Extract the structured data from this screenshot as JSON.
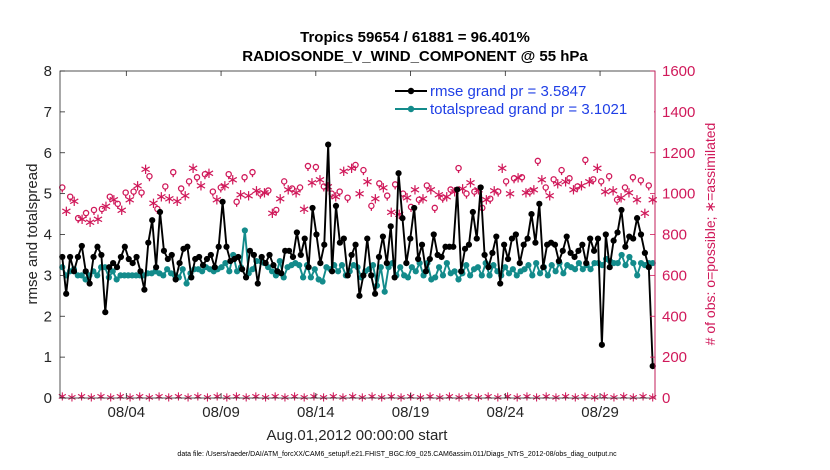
{
  "chart_data": {
    "type": "line",
    "title": "Tropics 59654 / 61881 = 96.401%",
    "subtitle": "RADIOSONDE_V_WIND_COMPONENT @ 55 hPa",
    "xlabel": "Aug.01,2012 00:00:00 start",
    "ylabel": "rmse and totalspread",
    "ylabel_right": "# of obs: o=possible; ∗=assimilated",
    "footnote": "data file: /Users/raeder/DAI/ATM_forcXX/CAM6_setup/f.e21.FHIST_BGC.f09_025.CAM6assim.011/Diags_NTrS_2012-08/obs_diag_output.nc",
    "xlim": [
      0.5,
      31.9
    ],
    "ylim": [
      0,
      8
    ],
    "ylim_right": [
      0,
      1600
    ],
    "x_ticks": [
      {
        "x": 4,
        "label": "08/04"
      },
      {
        "x": 9,
        "label": "08/09"
      },
      {
        "x": 14,
        "label": "08/14"
      },
      {
        "x": 19,
        "label": "08/19"
      },
      {
        "x": 24,
        "label": "08/24"
      },
      {
        "x": 29,
        "label": "08/29"
      }
    ],
    "y_ticks": [
      "0",
      "1",
      "2",
      "3",
      "4",
      "5",
      "6",
      "7",
      "8"
    ],
    "y_ticks_right": [
      "0",
      "200",
      "400",
      "600",
      "800",
      "1000",
      "1200",
      "1400",
      "1600"
    ],
    "legend": {
      "position": "top-right",
      "entries": [
        {
          "label": "rmse grand pr = 3.5847",
          "color": "#000000"
        },
        {
          "label": "totalspread grand pr = 3.1021",
          "color": "#138b8b"
        }
      ]
    },
    "colors": {
      "rmse": "#000000",
      "spread": "#138b8b",
      "obs": "#d0195a",
      "axis": "#262626"
    },
    "series": [
      {
        "name": "rmse",
        "values": [
          3.45,
          2.55,
          3.45,
          3.1,
          3.45,
          3.72,
          3.1,
          2.8,
          3.45,
          3.7,
          3.5,
          2.1,
          3.2,
          3.3,
          3.2,
          3.45,
          3.7,
          3.4,
          3.3,
          3.45,
          3.1,
          2.65,
          3.8,
          4.35,
          3.2,
          4.55,
          3.6,
          3.4,
          3.5,
          2.9,
          3.3,
          3.65,
          3.7,
          2.95,
          3.4,
          3.45,
          3.25,
          3.4,
          3.5,
          3.2,
          3.7,
          4.8,
          3.7,
          3.35,
          3.4,
          3.45,
          3.15,
          2.95,
          3.6,
          3.5,
          2.8,
          3.45,
          3.3,
          3.5,
          3.25,
          3.1,
          3.05,
          3.6,
          3.6,
          3.45,
          4.05,
          3.5,
          3.9,
          3.2,
          4.65,
          4.0,
          3.3,
          3.75,
          6.2,
          3.1,
          4.7,
          3.8,
          3.9,
          3.0,
          3.5,
          3.75,
          2.5,
          3.0,
          3.9,
          3.0,
          2.55,
          3.45,
          3.95,
          3.3,
          4.2,
          2.95,
          5.5,
          4.4,
          3.3,
          3.9,
          4.65,
          3.4,
          3.75,
          3.1,
          3.4,
          4.0,
          3.5,
          3.45,
          3.7,
          3.7,
          3.7,
          5.1,
          3.1,
          3.65,
          3.75,
          4.55,
          3.9,
          5.15,
          3.5,
          3.2,
          3.55,
          3.95,
          2.8,
          3.75,
          3.4,
          3.9,
          4.0,
          3.3,
          3.75,
          3.9,
          4.5,
          3.8,
          4.75,
          3.2,
          3.75,
          3.8,
          3.75,
          3.35,
          3.6,
          3.95,
          3.55,
          3.45,
          3.6,
          3.75,
          3.3,
          3.9,
          3.6,
          3.9,
          1.3,
          4.0,
          3.2,
          3.85,
          4.05,
          4.6,
          3.7,
          3.95,
          3.9,
          4.4,
          4.0,
          3.55,
          3.2,
          0.78
        ]
      },
      {
        "name": "totalspread",
        "values": [
          3.2,
          3.0,
          3.1,
          3.15,
          3.0,
          3.0,
          2.9,
          3.0,
          3.1,
          3.0,
          3.2,
          3.2,
          2.95,
          3.1,
          2.9,
          3.0,
          3.0,
          3.0,
          3.0,
          3.0,
          3.0,
          3.0,
          3.05,
          3.05,
          3.1,
          3.05,
          3.0,
          3.15,
          3.05,
          3.0,
          2.95,
          3.15,
          2.8,
          3.05,
          3.15,
          3.15,
          3.1,
          3.2,
          3.15,
          3.1,
          3.15,
          3.2,
          3.3,
          3.1,
          3.5,
          3.1,
          3.2,
          4.1,
          3.05,
          3.15,
          3.35,
          3.35,
          3.3,
          3.2,
          3.1,
          3.0,
          3.35,
          2.95,
          3.2,
          3.25,
          3.3,
          3.25,
          2.95,
          3.25,
          2.95,
          3.15,
          2.9,
          2.85,
          3.2,
          3.15,
          3.25,
          3.1,
          3.25,
          3.0,
          3.1,
          3.25,
          3.2,
          2.95,
          3.1,
          3.15,
          3.25,
          2.75,
          3.2,
          2.6,
          3.2,
          3.3,
          3.0,
          3.2,
          3.0,
          2.95,
          3.2,
          3.1,
          3.3,
          3.0,
          3.3,
          2.9,
          2.95,
          3.2,
          3.0,
          3.3,
          3.05,
          3.1,
          2.9,
          3.05,
          3.25,
          3.0,
          3.15,
          3.2,
          3.0,
          3.3,
          3.0,
          3.25,
          3.1,
          3.0,
          3.2,
          3.05,
          3.15,
          3.0,
          3.1,
          3.15,
          3.25,
          3.0,
          3.3,
          3.05,
          3.2,
          3.0,
          3.25,
          3.1,
          3.3,
          3.05,
          3.25,
          3.2,
          3.15,
          3.3,
          3.15,
          3.25,
          3.15,
          3.3,
          3.3,
          3.25,
          3.4,
          3.35,
          3.3,
          3.3,
          3.5,
          3.25,
          3.45,
          3.3,
          3.0,
          3.3,
          3.25,
          3.3,
          3.3
        ]
      },
      {
        "name": "obs_possible",
        "daily_values": [
          1030,
          945,
          985,
          990,
          880,
          900,
          905,
          885,
          920,
          900,
          925,
          970,
          985,
          1000,
          950,
          950,
          1005,
          1000,
          1010,
          1070,
          1005,
          1155,
          1085,
          985,
          925,
          1015,
          1035,
          1005,
          1105,
          995,
          1025,
          1020,
          1060,
          1160,
          1080,
          1075,
          1095,
          1135,
          1010,
          1000,
          1030,
          1075,
          1095,
          1100,
          960,
          1030,
          1080,
          1020,
          1105,
          1045,
          1000,
          1035,
          1015,
          935,
          920,
          1005,
          1060,
          1050,
          1025,
          1035,
          1030,
          955,
          1135,
          1085,
          1130,
          1105,
          1035,
          1065,
          1000,
          1015,
          1010,
          1145,
          980,
          1160,
          1140,
          1030,
          1115,
          1095,
          940,
          1005,
          1050,
          1060,
          990,
          940,
          1045,
          930,
          1000,
          1010,
          935,
          1055,
          970,
          1005,
          1040,
          1050,
          930,
          1025,
          980,
          1015,
          1020,
          1040,
          1125,
          1055,
          1000,
          1090,
          1010,
          1050,
          930,
          1000,
          975,
          1045,
          1010,
          1160,
          1060,
          1030,
          1075,
          1115,
          1080,
          1035,
          1010,
          1050,
          1160,
          1105,
          1030,
          1020,
          1070,
          1080,
          1115,
          1095,
          1075,
          1050,
          1035,
          1070,
          1165,
          1090,
          1070,
          1160,
          1060,
          1040,
          1085,
          1045,
          970,
          1010,
          1030,
          1035,
          1080,
          1000,
          1065,
          935,
          1040,
          1000
        ]
      },
      {
        "name": "obs_assimilated",
        "daily_values": [
          1000,
          920,
          965,
          970,
          860,
          880,
          885,
          865,
          895,
          880,
          900,
          945,
          960,
          975,
          930,
          925,
          980,
          975,
          985,
          1045,
          980,
          1125,
          1055,
          960,
          900,
          990,
          1010,
          980,
          1075,
          970,
          1000,
          995,
          1035,
          1130,
          1055,
          1045,
          1070,
          1105,
          985,
          975,
          1005,
          1045,
          1065,
          1075,
          930,
          1000,
          1055,
          995,
          1075,
          1020,
          975,
          1010,
          990,
          910,
          895,
          980,
          1035,
          1025,
          1000,
          1010,
          1005,
          930,
          1105,
          1060,
          1100,
          1075,
          1010,
          1040,
          975,
          990,
          985,
          1115,
          955,
          1130,
          1110,
          1005,
          1090,
          1065,
          915,
          980,
          1025,
          1035,
          965,
          915,
          1020,
          905,
          975,
          985,
          910,
          1025,
          945,
          980,
          1015,
          1025,
          905,
          1000,
          955,
          990,
          995,
          1015,
          1095,
          1030,
          975,
          1060,
          985,
          1025,
          905,
          975,
          950,
          1020,
          985,
          1130,
          1035,
          1005,
          1050,
          1085,
          1055,
          1010,
          985,
          1025,
          1130,
          1075,
          1005,
          995,
          1045,
          1055,
          1085,
          1065,
          1050,
          1025,
          1010,
          1045,
          1135,
          1065,
          1045,
          1130,
          1035,
          1015,
          1060,
          1020,
          945,
          985,
          1005,
          1010,
          1055,
          975,
          1040,
          910,
          1015,
          975
        ]
      }
    ]
  }
}
